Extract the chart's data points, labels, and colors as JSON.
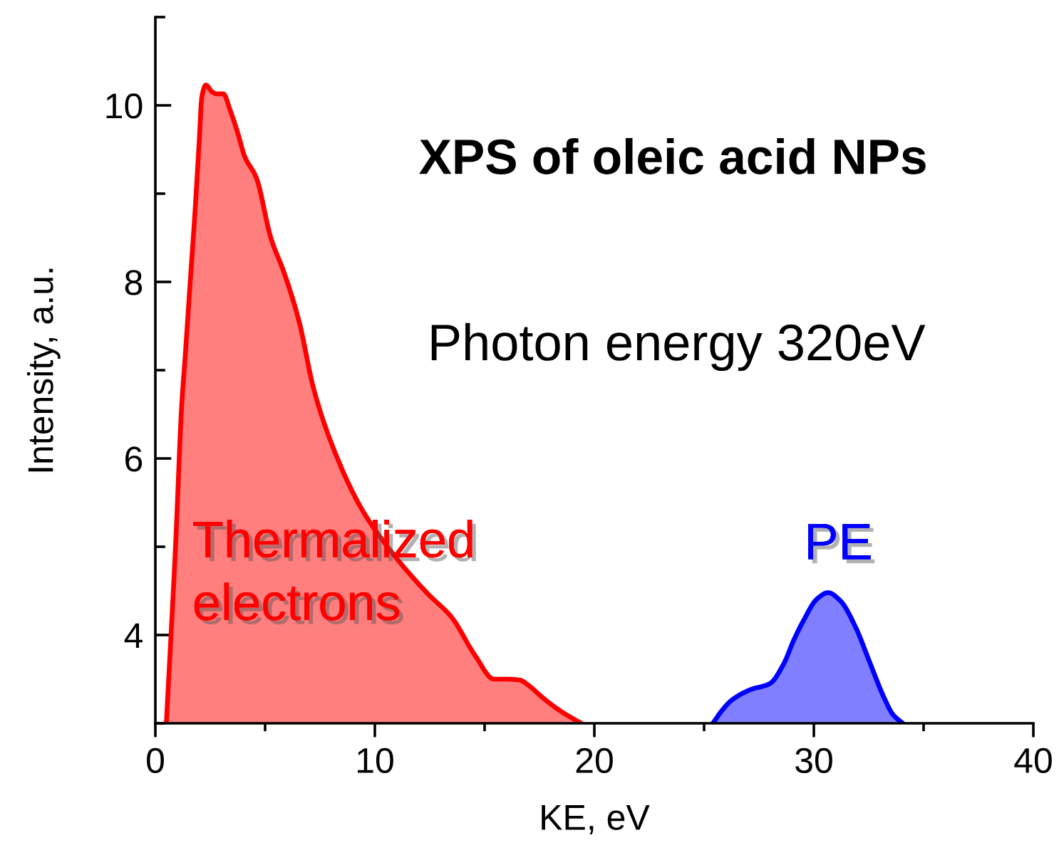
{
  "chart_data": {
    "type": "area",
    "title": "XPS of oleic acid NPs",
    "subtitle": "Photon energy 320eV",
    "xlabel": "KE, eV",
    "ylabel": "Intensity, a.u.",
    "xlim": [
      0,
      40
    ],
    "ylim": [
      3,
      11
    ],
    "xticks": [
      0,
      {
        "value": 5,
        "label": null
      },
      10,
      {
        "value": 15,
        "label": null
      },
      20,
      {
        "value": 25,
        "label": null
      },
      30,
      {
        "value": 35,
        "label": null
      },
      40
    ],
    "yticks": [
      {
        "value": 3,
        "label": null
      },
      4,
      {
        "value": 5,
        "label": null
      },
      6,
      {
        "value": 7,
        "label": null
      },
      8,
      {
        "value": 9,
        "label": null
      },
      10,
      {
        "value": 11,
        "label": null
      }
    ],
    "series": [
      {
        "name": "Thermalized\nelectrons",
        "color": "#ff0000",
        "x": [
          0.5,
          0.71,
          0.93,
          1.2,
          1.36,
          1.58,
          1.8,
          2.0,
          2.12,
          2.3,
          2.6,
          2.8,
          3.1,
          3.4,
          3.75,
          4.07,
          4.6,
          5.26,
          5.9,
          6.56,
          7.2,
          8.07,
          9.37,
          10.89,
          12.4,
          13.5,
          14.56,
          15.43,
          16.0,
          16.6,
          17.0,
          17.6,
          18.0,
          18.7,
          19.4
        ],
        "values": [
          3.0,
          3.98,
          5.06,
          6.6,
          7.16,
          7.97,
          8.77,
          9.6,
          10.1,
          10.23,
          10.15,
          10.13,
          10.13,
          9.95,
          9.69,
          9.42,
          9.18,
          8.5,
          8.08,
          7.54,
          6.8,
          6.14,
          5.44,
          4.9,
          4.47,
          4.2,
          3.77,
          3.5,
          3.5,
          3.49,
          3.43,
          3.3,
          3.22,
          3.1,
          3.0
        ]
      },
      {
        "name": "PE",
        "color": "#0000ff",
        "x": [
          25.4,
          25.8,
          26.25,
          27.1,
          28.0,
          28.6,
          29.1,
          29.5,
          30.15,
          30.65,
          31.2,
          31.9,
          32.5,
          33.2,
          33.6,
          34.05
        ],
        "values": [
          3.0,
          3.14,
          3.26,
          3.38,
          3.45,
          3.66,
          3.95,
          4.15,
          4.41,
          4.48,
          4.39,
          4.09,
          3.72,
          3.29,
          3.1,
          3.0
        ]
      }
    ]
  }
}
